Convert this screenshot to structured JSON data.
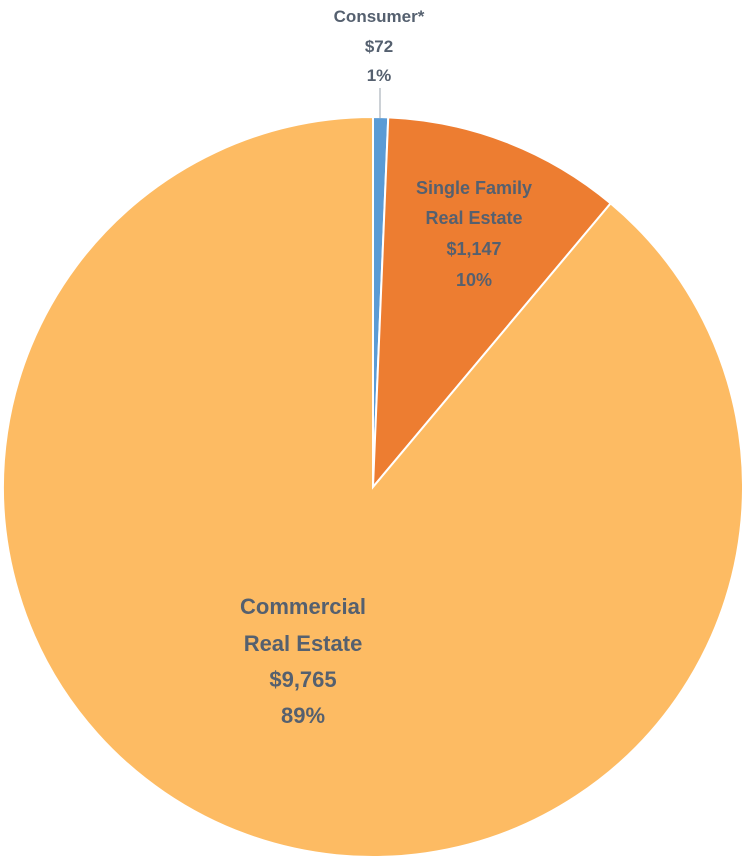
{
  "chart_data": {
    "type": "pie",
    "slices": [
      {
        "name_lines": [
          "Consumer*"
        ],
        "value_label": "$72",
        "percent_label": "1%",
        "value": 72,
        "color": "#5b9bd5"
      },
      {
        "name_lines": [
          "Single Family",
          "Real Estate"
        ],
        "value_label": "$1,147",
        "percent_label": "10%",
        "value": 1147,
        "color": "#ed7d31"
      },
      {
        "name_lines": [
          "Commercial",
          "Real Estate"
        ],
        "value_label": "$9,765",
        "percent_label": "89%",
        "value": 9765,
        "color": "#fdbb63"
      }
    ],
    "label_color": "#55606f"
  }
}
